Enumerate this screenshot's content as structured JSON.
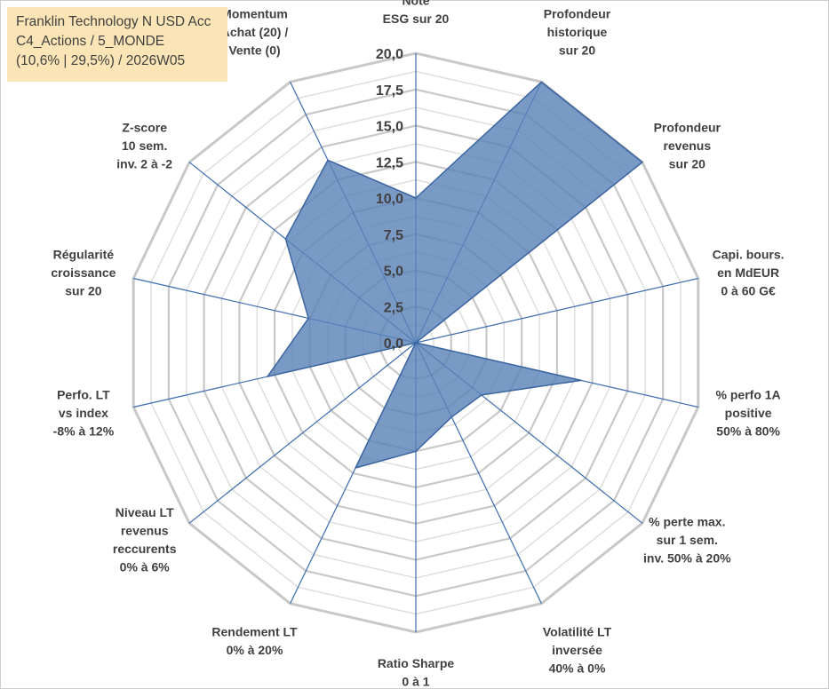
{
  "title_box": {
    "line1": "Franklin Technology N USD Acc",
    "line2": "C4_Actions / 5_MONDE",
    "line3": "(10,6% | 29,5%) / 2026W05"
  },
  "colors": {
    "fill": "#5b84b8",
    "stroke": "#3c65a0",
    "spoke": "#3b6bb0",
    "grid_major": "#c8c8c8",
    "grid_minor": "#dcdcdc",
    "text": "#404040",
    "title_bg": "#fbe5b6"
  },
  "chart_data": {
    "type": "radar",
    "scale": {
      "min": 0,
      "max": 20,
      "step": 2.5
    },
    "tick_labels": [
      "0,0",
      "2,5",
      "5,0",
      "7,5",
      "10,0",
      "12,5",
      "15,0",
      "17,5",
      "20,0"
    ],
    "axes": [
      {
        "lines": [
          "Note",
          "ESG sur 20"
        ]
      },
      {
        "lines": [
          "Profondeur",
          "historique",
          "sur 20"
        ]
      },
      {
        "lines": [
          "Profondeur",
          "revenus",
          "sur 20"
        ]
      },
      {
        "lines": [
          "Capi. bours.",
          "en MdEUR",
          "0 à 60 G€"
        ]
      },
      {
        "lines": [
          "% perfo 1A",
          "positive",
          "50% à 80%"
        ]
      },
      {
        "lines": [
          "% perte max.",
          "sur 1 sem.",
          "inv. 50% à 20%"
        ]
      },
      {
        "lines": [
          "Volatilité LT",
          "inversée",
          "40% à 0%"
        ]
      },
      {
        "lines": [
          "Ratio Sharpe",
          "0 à 1"
        ]
      },
      {
        "lines": [
          "Rendement LT",
          "0% à 20%"
        ]
      },
      {
        "lines": [
          "Niveau LT",
          "revenus",
          "reccurents",
          "0% à 6%"
        ]
      },
      {
        "lines": [
          "Perfo. LT",
          "vs index",
          "-8% à 12%"
        ]
      },
      {
        "lines": [
          "Régularité",
          "croissance",
          "sur 20"
        ]
      },
      {
        "lines": [
          "Z-score",
          "10 sem.",
          "inv. 2 à -2"
        ]
      },
      {
        "lines": [
          "Momentum",
          "Achat (20) /",
          "Vente (0)"
        ]
      }
    ],
    "series": [
      {
        "name": "Franklin Technology N USD Acc",
        "values": [
          10.0,
          20.0,
          20.0,
          0.0,
          11.7,
          5.8,
          5.7,
          7.5,
          9.6,
          0.0,
          10.5,
          7.6,
          11.5,
          14.0
        ]
      }
    ]
  }
}
